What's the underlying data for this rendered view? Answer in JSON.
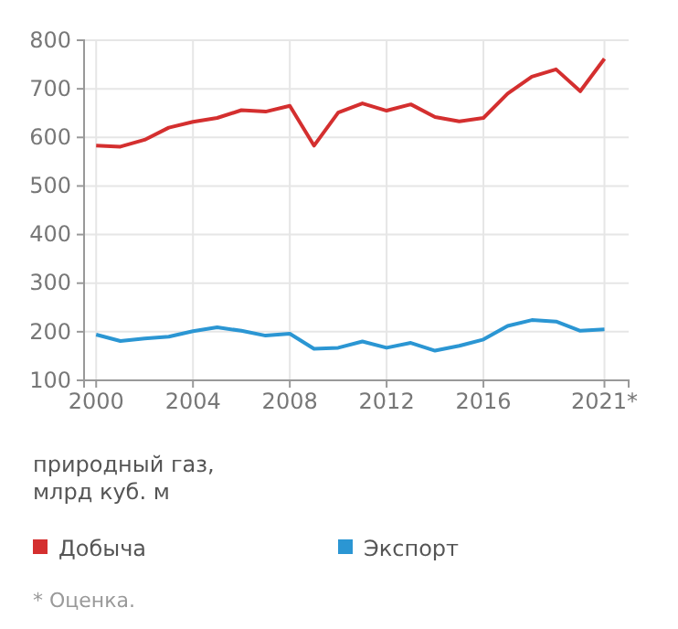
{
  "chart_data": {
    "type": "line",
    "ylabel": "природный газ,\nмлрд куб. м",
    "x": [
      2000,
      2001,
      2002,
      2003,
      2004,
      2005,
      2006,
      2007,
      2008,
      2009,
      2010,
      2011,
      2012,
      2013,
      2014,
      2015,
      2016,
      2017,
      2018,
      2019,
      2020,
      2021
    ],
    "series": [
      {
        "name": "Добыча",
        "color": "#d42f2f",
        "values": [
          583,
          581,
          595,
          620,
          632,
          640,
          656,
          653,
          665,
          583,
          651,
          670,
          655,
          668,
          642,
          633,
          640,
          690,
          725,
          740,
          695,
          762
        ]
      },
      {
        "name": "Экспорт",
        "color": "#2b96d3",
        "values": [
          194,
          181,
          186,
          190,
          201,
          209,
          202,
          192,
          196,
          165,
          167,
          180,
          167,
          177,
          161,
          171,
          184,
          212,
          224,
          221,
          202,
          205
        ]
      }
    ],
    "xlim": [
      1999.5,
      2022
    ],
    "ylim": [
      100,
      800
    ],
    "xticks": [
      2000,
      2004,
      2008,
      2012,
      2016,
      {
        "value": 2021,
        "label": "2021*"
      }
    ],
    "yticks": [
      100,
      200,
      300,
      400,
      500,
      600,
      700,
      800
    ],
    "grid": true,
    "legend": "bottom",
    "marker": "none",
    "line_style": "solid",
    "annotations": [
      "* Оценка."
    ]
  }
}
